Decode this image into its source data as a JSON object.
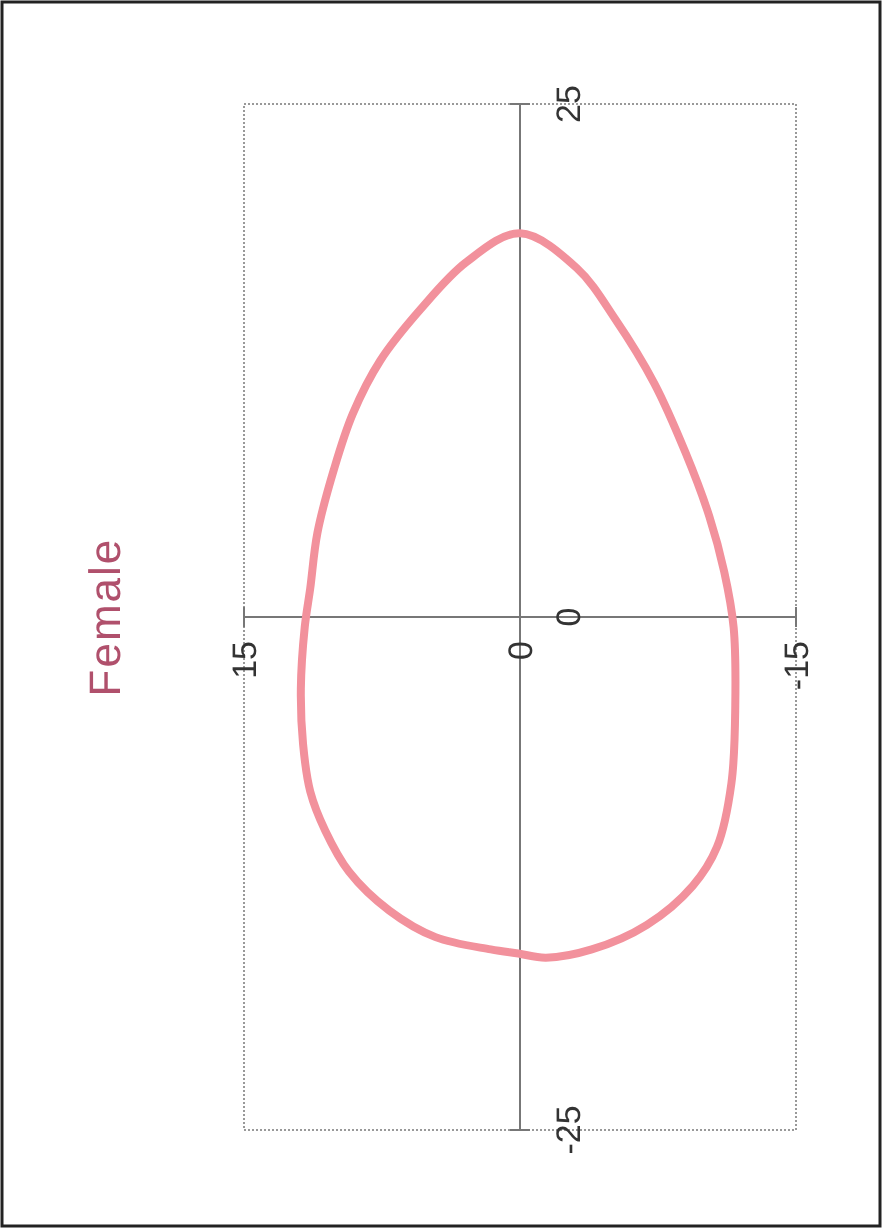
{
  "chart_data": {
    "type": "line",
    "title": "Female",
    "xlim": [
      15,
      -15
    ],
    "ylim": [
      -25,
      25
    ],
    "xticks": [
      15,
      0,
      -15
    ],
    "yticks": [
      -25,
      0,
      25
    ],
    "line_style": "solid"
  }
}
